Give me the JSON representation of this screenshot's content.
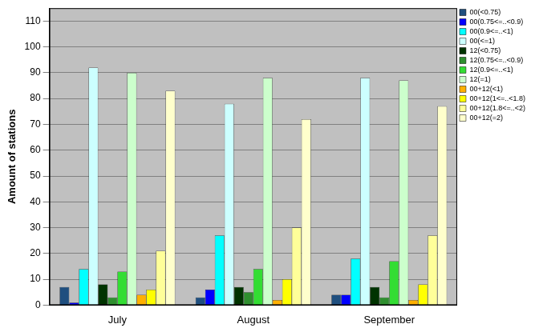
{
  "chart_data": {
    "type": "bar",
    "y_label": "Amount of stations",
    "categories": [
      "July",
      "August",
      "September"
    ],
    "series": [
      {
        "name": "00(<0.75)",
        "color": "#1f4f7f",
        "values": [
          7,
          3,
          4
        ]
      },
      {
        "name": "00(0.75<=..<0.9)",
        "color": "#0000ff",
        "values": [
          1,
          6,
          4
        ]
      },
      {
        "name": "00(0.9<=..<1)",
        "color": "#00ffff",
        "values": [
          14,
          27,
          18
        ]
      },
      {
        "name": "00(<=1)",
        "color": "#ccffff",
        "values": [
          92,
          78,
          88
        ]
      },
      {
        "name": "12(<0.75)",
        "color": "#003300",
        "values": [
          8,
          7,
          7
        ]
      },
      {
        "name": "12(0.75<=..<0.9)",
        "color": "#2f8f2f",
        "values": [
          3,
          5,
          3
        ]
      },
      {
        "name": "12(0.9<=..<1)",
        "color": "#33dd33",
        "values": [
          13,
          14,
          17
        ]
      },
      {
        "name": "12(=1)",
        "color": "#ccffcc",
        "values": [
          90,
          88,
          87
        ]
      },
      {
        "name": "00+12(<1)",
        "color": "#ffb000",
        "values": [
          4,
          2,
          2
        ]
      },
      {
        "name": "00+12(1<=..<1.8)",
        "color": "#ffff00",
        "values": [
          6,
          10,
          8
        ]
      },
      {
        "name": "00+12(1.8<=..<2)",
        "color": "#ffff99",
        "values": [
          21,
          30,
          27
        ]
      },
      {
        "name": "00+12(=2)",
        "color": "#ffffcc",
        "values": [
          83,
          72,
          77
        ]
      }
    ],
    "ylim": [
      0,
      115
    ],
    "yticks": [
      0,
      10,
      20,
      30,
      40,
      50,
      60,
      70,
      80,
      90,
      100,
      110
    ],
    "grid": true,
    "legend": "top-right"
  }
}
